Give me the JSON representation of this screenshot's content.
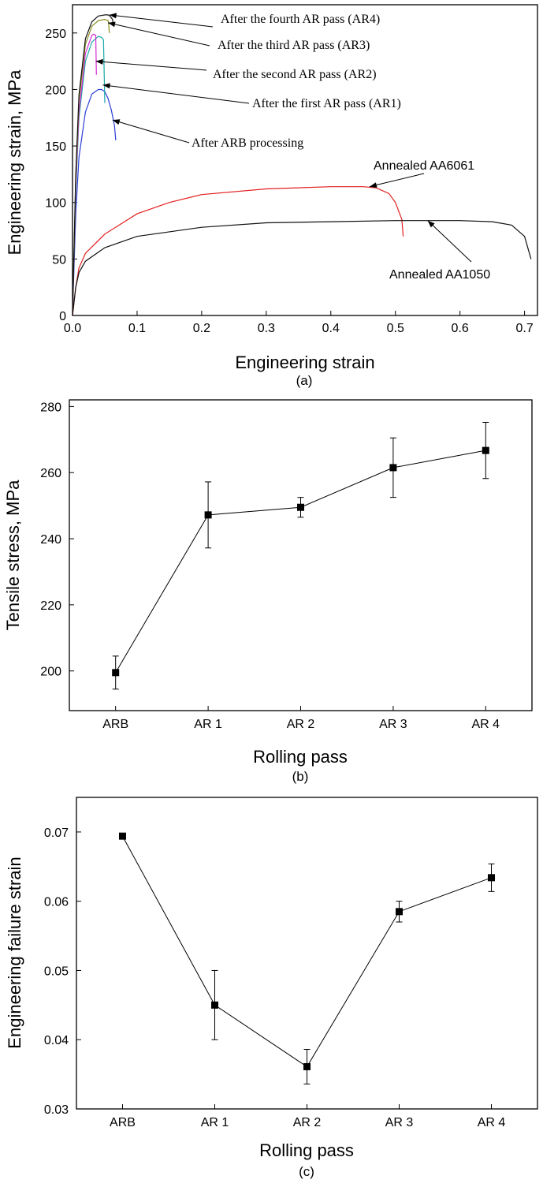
{
  "chart_data": [
    {
      "type": "line",
      "xlabel": "Engineering strain",
      "ylabel": "Engineering strain, MPa",
      "caption": "(a)",
      "xlim": [
        0,
        0.72
      ],
      "ylim": [
        0,
        275
      ],
      "xticks": [
        "0.0",
        "0.1",
        "0.2",
        "0.3",
        "0.4",
        "0.5",
        "0.6",
        "0.7"
      ],
      "yticks": [
        "0",
        "50",
        "100",
        "150",
        "200",
        "250"
      ],
      "series": [
        {
          "name": "After ARB processing",
          "color": "#2a3fd6",
          "x": [
            0,
            0.005,
            0.01,
            0.02,
            0.03,
            0.04,
            0.045,
            0.05,
            0.055,
            0.06,
            0.065,
            0.067
          ],
          "y": [
            0,
            90,
            140,
            180,
            196,
            200,
            200,
            198,
            192,
            182,
            168,
            155
          ]
        },
        {
          "name": "After the first AR pass (AR1)",
          "color": "#19a8a8",
          "x": [
            0,
            0.005,
            0.01,
            0.02,
            0.03,
            0.04,
            0.045,
            0.048,
            0.05
          ],
          "y": [
            0,
            110,
            175,
            225,
            242,
            247,
            246,
            244,
            188
          ]
        },
        {
          "name": "After the second AR pass (AR2)",
          "color": "#d42bd4",
          "x": [
            0,
            0.005,
            0.01,
            0.02,
            0.03,
            0.033,
            0.036,
            0.037
          ],
          "y": [
            0,
            115,
            180,
            232,
            248,
            249,
            248,
            213
          ]
        },
        {
          "name": "After the third AR pass (AR3)",
          "color": "#8a8a1a",
          "x": [
            0,
            0.005,
            0.01,
            0.02,
            0.03,
            0.04,
            0.05,
            0.055,
            0.056,
            0.057
          ],
          "y": [
            0,
            120,
            190,
            240,
            256,
            261,
            262,
            261,
            258,
            250
          ]
        },
        {
          "name": "After the fourth AR pass (AR4)",
          "color": "#111111",
          "x": [
            0,
            0.005,
            0.01,
            0.02,
            0.03,
            0.04,
            0.05,
            0.055,
            0.058,
            0.062,
            0.063
          ],
          "y": [
            0,
            125,
            195,
            245,
            260,
            265,
            266,
            266,
            265,
            262,
            258
          ]
        },
        {
          "name": "Annealed AA6061",
          "color": "#e32020",
          "x": [
            0,
            0.005,
            0.01,
            0.02,
            0.05,
            0.1,
            0.15,
            0.2,
            0.3,
            0.4,
            0.45,
            0.47,
            0.49,
            0.5,
            0.51,
            0.512
          ],
          "y": [
            0,
            25,
            42,
            55,
            72,
            90,
            100,
            107,
            112,
            114,
            114,
            113,
            108,
            100,
            85,
            70
          ]
        },
        {
          "name": "Annealed AA1050",
          "color": "#111111",
          "x": [
            0,
            0.005,
            0.01,
            0.02,
            0.05,
            0.1,
            0.2,
            0.3,
            0.4,
            0.5,
            0.6,
            0.65,
            0.68,
            0.7,
            0.71
          ],
          "y": [
            0,
            25,
            38,
            48,
            60,
            70,
            78,
            82,
            83,
            84,
            84,
            83,
            80,
            70,
            50
          ]
        }
      ],
      "annotations": [
        {
          "text": "After the fourth AR pass (AR4)",
          "x": 0.057,
          "y": 266
        },
        {
          "text": "After the third AR pass (AR3)",
          "x": 0.055,
          "y": 259
        },
        {
          "text": "After the second AR pass (AR2)",
          "x": 0.036,
          "y": 225
        },
        {
          "text": "After the first AR pass (AR1)",
          "x": 0.047,
          "y": 204
        },
        {
          "text": "After ARB processing",
          "x": 0.062,
          "y": 173
        },
        {
          "text": "Annealed AA6061",
          "x": 0.46,
          "y": 114
        },
        {
          "text": "Annealed AA1050",
          "x": 0.55,
          "y": 84
        }
      ]
    },
    {
      "type": "line",
      "xlabel": "Rolling pass",
      "ylabel": "Tensile stress, MPa",
      "caption": "(b)",
      "categories": [
        "ARB",
        "AR 1",
        "AR 2",
        "AR 3",
        "AR 4"
      ],
      "values": [
        199.5,
        247.2,
        249.5,
        261.5,
        266.7
      ],
      "errors": [
        5,
        10,
        3,
        9,
        8.5
      ],
      "ylim": [
        188,
        282
      ],
      "yticks": [
        "200",
        "220",
        "240",
        "260",
        "280"
      ]
    },
    {
      "type": "line",
      "xlabel": "Rolling pass",
      "ylabel": "Engineering failure strain",
      "caption": "(c)",
      "categories": [
        "ARB",
        "AR 1",
        "AR 2",
        "AR 3",
        "AR 4"
      ],
      "values": [
        0.0694,
        0.045,
        0.0361,
        0.0585,
        0.0634
      ],
      "errors": [
        0,
        0.005,
        0.0025,
        0.0015,
        0.002
      ],
      "ylim": [
        0.03,
        0.075
      ],
      "yticks": [
        "0.03",
        "0.04",
        "0.05",
        "0.06",
        "0.07"
      ]
    }
  ]
}
